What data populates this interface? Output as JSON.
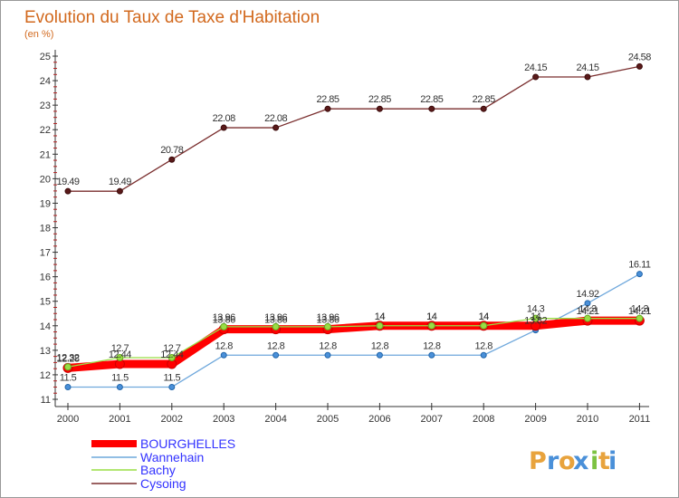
{
  "chart_data": {
    "type": "line",
    "title": "Evolution du Taux de Taxe d'Habitation",
    "subtitle": "(en %)",
    "x": [
      "2000",
      "2001",
      "2002",
      "2003",
      "2004",
      "2005",
      "2006",
      "2007",
      "2008",
      "2009",
      "2010",
      "2011"
    ],
    "ylim": [
      11,
      25
    ],
    "yticks": [
      11,
      12,
      13,
      14,
      15,
      16,
      17,
      18,
      19,
      20,
      21,
      22,
      23,
      24,
      25
    ],
    "series": [
      {
        "name": "BOURGHELLES",
        "color": "#ff0000",
        "values": [
          12.28,
          12.44,
          12.44,
          13.86,
          13.86,
          13.86,
          14,
          14,
          14,
          14,
          14.21,
          14.21
        ],
        "labels": [
          "12.28",
          "12.44",
          "12.44",
          "13.86",
          "13.86",
          "13.86",
          "14",
          "14",
          "14",
          "14",
          "14.21",
          "14.21"
        ]
      },
      {
        "name": "Wannehain",
        "color": "#6fa8dc",
        "values": [
          11.5,
          11.5,
          11.5,
          12.8,
          12.8,
          12.8,
          12.8,
          12.8,
          12.8,
          13.82,
          14.92,
          16.11
        ],
        "labels": [
          "11.5",
          "11.5",
          "11.5",
          "12.8",
          "12.8",
          "12.8",
          "12.8",
          "12.8",
          "12.8",
          "13.82",
          "14.92",
          "16.11"
        ]
      },
      {
        "name": "Bachy",
        "color": "#99dd44",
        "values": [
          12.32,
          12.7,
          12.7,
          13.96,
          13.96,
          13.96,
          14,
          14,
          14,
          14.3,
          14.3,
          14.3
        ],
        "labels": [
          "12.32",
          "12.7",
          "12.7",
          "13.96",
          "13.96",
          "13.96",
          "14",
          "14",
          "14",
          "14.3",
          "14.3",
          "14.3"
        ]
      },
      {
        "name": "Cysoing",
        "color": "#7a2e2e",
        "values": [
          19.49,
          19.49,
          20.78,
          22.08,
          22.08,
          22.85,
          22.85,
          22.85,
          22.85,
          24.15,
          24.15,
          24.58
        ],
        "labels": [
          "19.49",
          "19.49",
          "20.78",
          "22.08",
          "22.08",
          "22.85",
          "22.85",
          "22.85",
          "22.85",
          "24.15",
          "24.15",
          "24.58"
        ]
      }
    ],
    "grid": false,
    "legend": "bottom-left"
  },
  "legend_colors": {
    "BOURGHELLES": "#3333ff",
    "Wannehain": "#3333ff",
    "Bachy": "#3333ff",
    "Cysoing": "#3333ff"
  },
  "logo": {
    "text": "Proxiti",
    "letters": [
      "P",
      "r",
      "o",
      "x",
      "i",
      "t",
      "i"
    ],
    "colors": [
      "#e8a33d",
      "#4a90d9",
      "#e8a33d",
      "#4a90d9",
      "#7cc242",
      "#e8a33d",
      "#4a90d9"
    ]
  }
}
